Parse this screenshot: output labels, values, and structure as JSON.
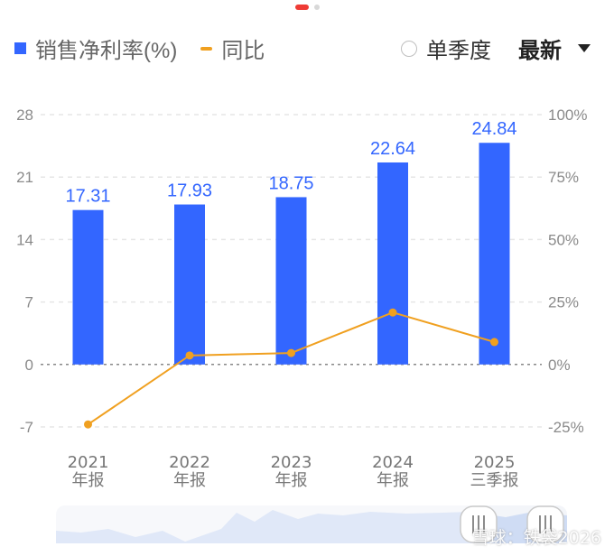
{
  "legend": {
    "bar_label": "销售净利率(%)",
    "line_label": "同比"
  },
  "controls": {
    "single_quarter": "单季度",
    "latest": "最新"
  },
  "watermark": "雪球：铁袋2026",
  "colors": {
    "bar": "#3366ff",
    "line": "#f0a020"
  },
  "chart_data": {
    "type": "bar",
    "categories": [
      [
        "2021",
        "年报"
      ],
      [
        "2022",
        "年报"
      ],
      [
        "2023",
        "年报"
      ],
      [
        "2024",
        "年报"
      ],
      [
        "2025",
        "三季报"
      ]
    ],
    "series": [
      {
        "name": "销售净利率(%)",
        "type": "bar",
        "axis": "left",
        "values": [
          17.31,
          17.93,
          18.75,
          22.64,
          24.84
        ]
      },
      {
        "name": "同比",
        "type": "line",
        "axis": "right",
        "values": [
          -24,
          3.6,
          4.6,
          20.8,
          9
        ]
      }
    ],
    "left_axis": {
      "ticks": [
        "28",
        "21",
        "14",
        "7",
        "0",
        "-7"
      ],
      "ylim": [
        -7,
        28
      ]
    },
    "right_axis": {
      "ticks": [
        "100%",
        "75%",
        "50%",
        "25%",
        "0%",
        "-25%"
      ],
      "ylim": [
        -25,
        100
      ]
    },
    "grid": true
  }
}
